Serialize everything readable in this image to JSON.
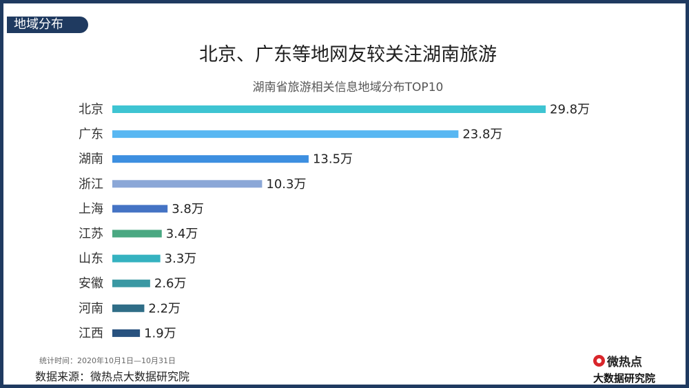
{
  "section_tag": "地域分布",
  "chart_data": {
    "type": "bar",
    "orientation": "horizontal",
    "title": "北京、广东等地网友较关注湖南旅游",
    "subtitle": "湖南省旅游相关信息地域分布TOP10",
    "value_unit": "万",
    "categories": [
      "北京",
      "广东",
      "湖南",
      "浙江",
      "上海",
      "江苏",
      "山东",
      "安徽",
      "河南",
      "江西"
    ],
    "values": [
      29.8,
      23.8,
      13.5,
      10.3,
      3.8,
      3.4,
      3.3,
      2.6,
      2.2,
      1.9
    ],
    "value_labels": [
      "29.8万",
      "23.8万",
      "13.5万",
      "10.3万",
      "3.8万",
      "3.4万",
      "3.3万",
      "2.6万",
      "2.2万",
      "1.9万"
    ],
    "bar_colors": [
      "#3ec4d2",
      "#58b7f2",
      "#3d8fe0",
      "#8ba7d7",
      "#4473c4",
      "#4aa882",
      "#35b2c0",
      "#3a98a3",
      "#2f6d87",
      "#28527f"
    ],
    "xlim": [
      0,
      29.8
    ],
    "grid": false,
    "legend": "none"
  },
  "footer": {
    "stat_period": "统计时间：2020年10月1日—10月31日",
    "source": "数据来源：微热点大数据研究院"
  },
  "logo": {
    "top_text": "微热点",
    "bottom_text": "大数据研究院",
    "icon": "weiredian-logo-icon"
  }
}
